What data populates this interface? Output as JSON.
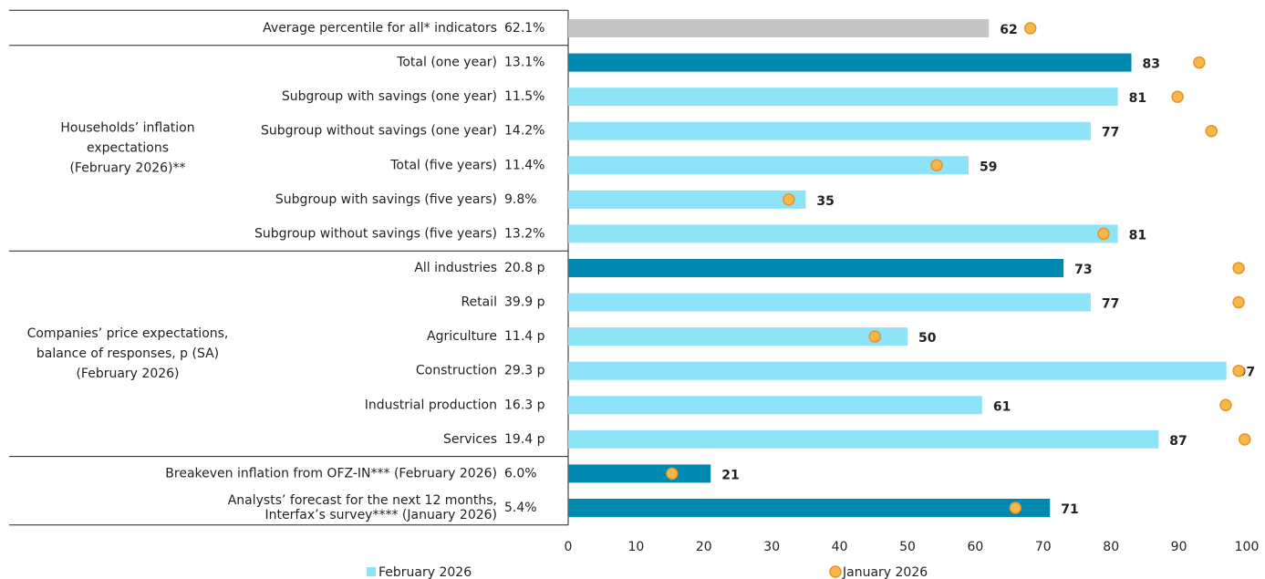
{
  "chart_data": {
    "type": "bar",
    "orientation": "horizontal",
    "groups": [
      {
        "label_lines": [
          "Households’ inflation",
          "expectations",
          "(February 2026)**"
        ],
        "first_row": 1,
        "last_row": 6
      },
      {
        "label_lines": [
          "Companies’ price expectations,",
          "balance of responses, p (SA)",
          "(February 2026)"
        ],
        "first_row": 7,
        "last_row": 12
      }
    ],
    "categories": [
      "Average percentile for all* indicators",
      "Total (one year)",
      "Subgroup with savings (one year)",
      "Subgroup without savings (one year)",
      "Total (five years)",
      "Subgroup with savings (five years)",
      "Subgroup without savings (five years)",
      "All industries",
      "Retail",
      "Agriculture",
      "Construction",
      "Industrial production",
      "Services",
      "Breakeven inflation from OFZ-IN*** (February 2026)",
      [
        "Analysts’ forecast for the next 12 months,",
        "Interfax’s survey**** (January 2026)"
      ]
    ],
    "indicator_values": [
      "62.1%",
      "13.1%",
      "11.5%",
      "14.2%",
      "11.4%",
      "9.8%",
      "13.2%",
      "20.8 p",
      "39.9 p",
      "11.4 p",
      "29.3 p",
      "16.3 p",
      "19.4 p",
      "6.0%",
      "5.4%"
    ],
    "series": [
      {
        "name": "February 2026",
        "color": "#8fe3f9",
        "colors": [
          "#c6c6c6",
          "#0089b0",
          "#8fe3f9",
          "#8fe3f9",
          "#8fe3f9",
          "#8fe3f9",
          "#8fe3f9",
          "#0089b0",
          "#8fe3f9",
          "#8fe3f9",
          "#8fe3f9",
          "#8fe3f9",
          "#8fe3f9",
          "#0089b0",
          "#0089b0"
        ],
        "label_colors": [
          "#555555",
          "#0089b0",
          "#19b5e0",
          "#19b5e0",
          "#19b5e0",
          "#19b5e0",
          "#19b5e0",
          "#0089b0",
          "#19b5e0",
          "#19b5e0",
          "#19b5e0",
          "#19b5e0",
          "#19b5e0",
          "#0089b0",
          "#0089b0"
        ],
        "values": [
          62,
          83,
          81,
          77,
          59,
          35,
          81,
          73,
          77,
          50,
          97,
          61,
          87,
          21,
          71
        ]
      },
      {
        "name": "January 2026",
        "color": "#f9b74a",
        "marker": "circle",
        "values": [
          68.1,
          93,
          89.8,
          94.8,
          54.3,
          32.5,
          78.9,
          98.8,
          98.8,
          45.2,
          98.8,
          96.9,
          99.7,
          15.3,
          65.9
        ]
      }
    ],
    "xlim": [
      0,
      100
    ],
    "xticks": [
      0,
      10,
      20,
      30,
      40,
      50,
      60,
      70,
      80,
      90,
      100
    ],
    "legend": "bottom"
  }
}
